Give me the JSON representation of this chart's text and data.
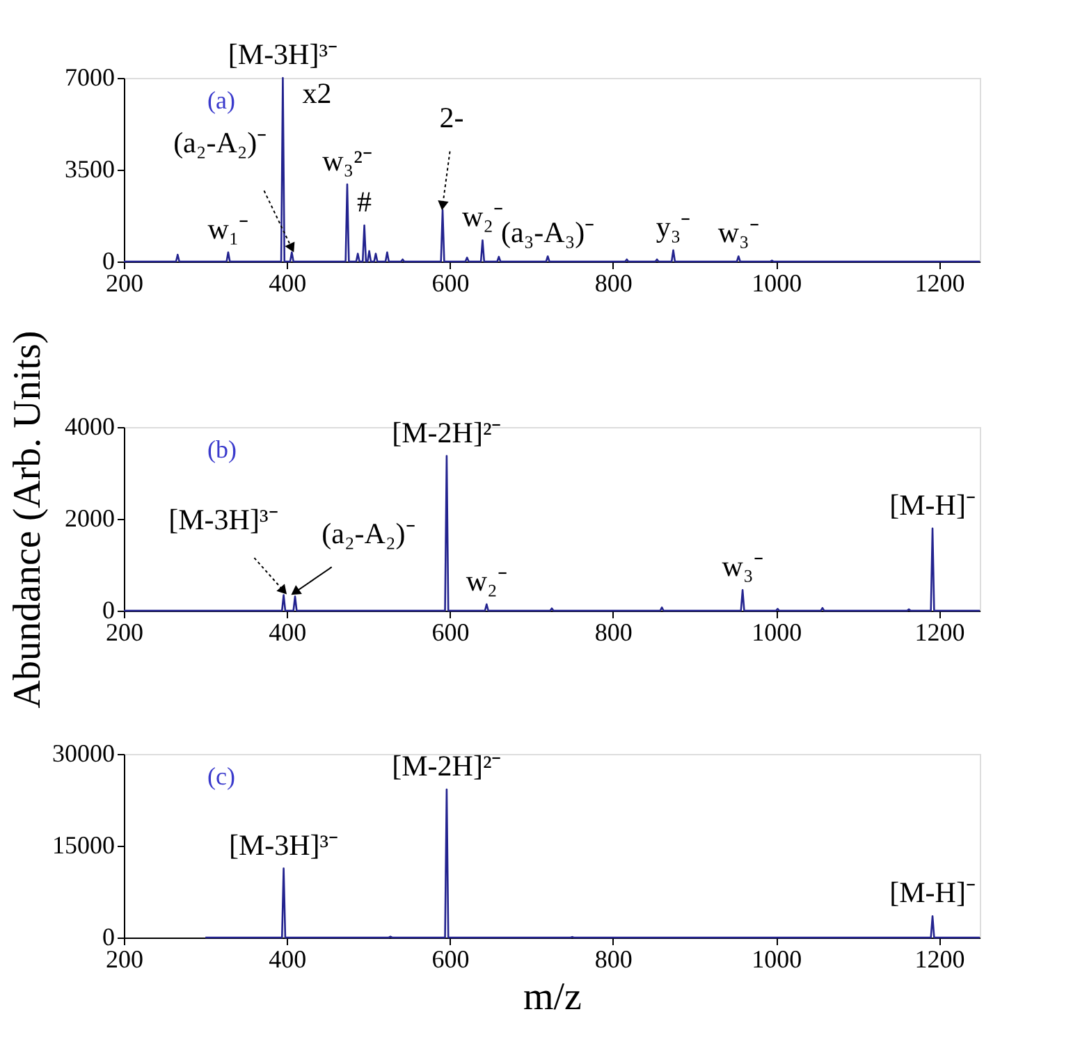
{
  "chart_data": [
    {
      "type": "line",
      "title": "(a)",
      "xlim": [
        200,
        1250
      ],
      "xticks": [
        200,
        400,
        600,
        800,
        1000,
        1200
      ],
      "ylim": [
        0,
        7000
      ],
      "yticks": [
        0,
        3500,
        7000
      ],
      "x": [
        200,
        264,
        266,
        268,
        326,
        328,
        330,
        393,
        395,
        397,
        404,
        406,
        408,
        472,
        474,
        476,
        485,
        487,
        489,
        493,
        495,
        497,
        499,
        501,
        503,
        507,
        509,
        511,
        521,
        523,
        525,
        540,
        542,
        544,
        589,
        591,
        593,
        619,
        621,
        623,
        638,
        640,
        642,
        658,
        660,
        662,
        718,
        720,
        722,
        815,
        817,
        819,
        852,
        854,
        856,
        872,
        874,
        876,
        952,
        954,
        956,
        993,
        995,
        997,
        1250
      ],
      "series": [
        {
          "color": "#23238f",
          "values": [
            0,
            0,
            260,
            0,
            0,
            350,
            0,
            0,
            7000,
            0,
            0,
            350,
            0,
            0,
            2940,
            0,
            0,
            300,
            0,
            0,
            1380,
            0,
            0,
            400,
            0,
            0,
            300,
            0,
            0,
            350,
            0,
            0,
            80,
            0,
            0,
            1970,
            0,
            0,
            150,
            0,
            0,
            810,
            0,
            0,
            180,
            0,
            0,
            200,
            0,
            0,
            80,
            0,
            0,
            80,
            0,
            0,
            430,
            0,
            0,
            200,
            0,
            0,
            40,
            0,
            0
          ]
        }
      ],
      "annotations": [
        {
          "text": "[M-3H]³⁻",
          "x": 395,
          "y": 7000
        },
        {
          "text": "x2",
          "x": 395,
          "y": 7000
        },
        {
          "text": "(a₂-A₂)⁻",
          "x": 406,
          "y": 350
        },
        {
          "text": "w₁⁻",
          "x": 328,
          "y": 350
        },
        {
          "text": "w₃²⁻",
          "x": 474,
          "y": 2940
        },
        {
          "text": "#",
          "x": 495,
          "y": 1380
        },
        {
          "text": "2-",
          "x": 591,
          "y": 1970
        },
        {
          "text": "w₂⁻",
          "x": 640,
          "y": 810
        },
        {
          "text": "(a₃-A₃)⁻",
          "x": 720,
          "y": 200
        },
        {
          "text": "y₃⁻",
          "x": 874,
          "y": 430
        },
        {
          "text": "w₃⁻",
          "x": 954,
          "y": 200
        }
      ]
    },
    {
      "type": "line",
      "title": "(b)",
      "ylabel": "Abundance (Arb. Units)",
      "xlim": [
        200,
        1250
      ],
      "xticks": [
        200,
        400,
        600,
        800,
        1000,
        1200
      ],
      "ylim": [
        0,
        4000
      ],
      "yticks": [
        0,
        2000,
        4000
      ],
      "x": [
        200,
        394,
        396,
        398,
        408,
        410,
        412,
        594,
        596,
        598,
        643,
        645,
        647,
        723,
        725,
        727,
        858,
        860,
        862,
        957,
        959,
        961,
        1000,
        1002,
        1004,
        1055,
        1057,
        1059,
        1161,
        1163,
        1165,
        1190,
        1192,
        1194,
        1250
      ],
      "series": [
        {
          "color": "#23238f",
          "values": [
            0,
            0,
            340,
            0,
            0,
            310,
            0,
            0,
            3370,
            0,
            0,
            140,
            0,
            0,
            50,
            0,
            0,
            70,
            0,
            0,
            450,
            0,
            0,
            40,
            0,
            0,
            60,
            0,
            0,
            30,
            0,
            0,
            1790,
            0,
            0
          ]
        }
      ],
      "annotations": [
        {
          "text": "[M-3H]³⁻",
          "x": 396,
          "y": 340
        },
        {
          "text": "(a₂-A₂)⁻",
          "x": 410,
          "y": 310
        },
        {
          "text": "[M-2H]²⁻",
          "x": 596,
          "y": 3370
        },
        {
          "text": "w₂⁻",
          "x": 645,
          "y": 140
        },
        {
          "text": "w₃⁻",
          "x": 959,
          "y": 450
        },
        {
          "text": "[M-H]⁻",
          "x": 1192,
          "y": 1790
        }
      ]
    },
    {
      "type": "line",
      "title": "(c)",
      "xlabel": "m/z",
      "xlim": [
        200,
        1250
      ],
      "xticks": [
        200,
        400,
        600,
        800,
        1000,
        1200
      ],
      "ylim": [
        0,
        30000
      ],
      "yticks": [
        0,
        15000,
        30000
      ],
      "x": [
        300,
        394,
        396,
        398,
        525,
        527,
        529,
        594,
        596,
        598,
        748,
        750,
        752,
        1190,
        1192,
        1194,
        1250
      ],
      "series": [
        {
          "color": "#23238f",
          "values": [
            0,
            0,
            11300,
            0,
            0,
            150,
            0,
            0,
            24200,
            0,
            0,
            100,
            0,
            0,
            3500,
            0,
            0
          ]
        }
      ],
      "annotations": [
        {
          "text": "[M-3H]³⁻",
          "x": 396,
          "y": 11300
        },
        {
          "text": "[M-2H]²⁻",
          "x": 596,
          "y": 24200
        },
        {
          "text": "[M-H]⁻",
          "x": 1192,
          "y": 3500
        }
      ]
    }
  ]
}
